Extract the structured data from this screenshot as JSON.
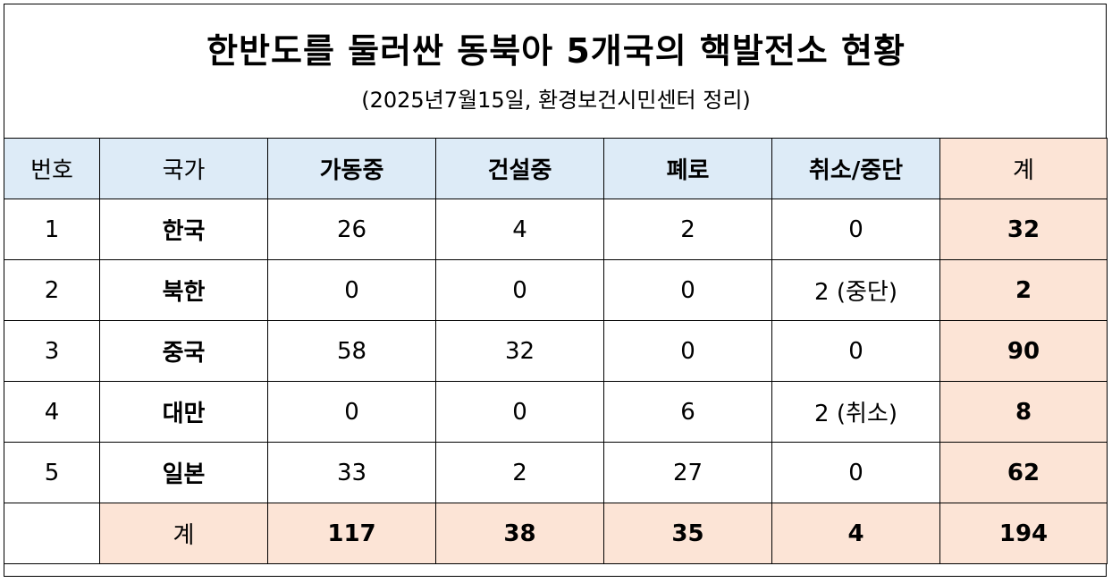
{
  "title": "한반도를 둘러싼 동북아 5개국의 핵발전소 현황",
  "subtitle": "(2025년7월15일, 환경보건시민센터 정리)",
  "table": {
    "headers": [
      "번호",
      "국가",
      "가동중",
      "건설중",
      "폐로",
      "취소/중단",
      "계"
    ],
    "rows": [
      [
        "1",
        "한국",
        "26",
        "4",
        "2",
        "0",
        "32"
      ],
      [
        "2",
        "북한",
        "0",
        "0",
        "0",
        "2 (중단)",
        "2"
      ],
      [
        "3",
        "중국",
        "58",
        "32",
        "0",
        "0",
        "90"
      ],
      [
        "4",
        "대만",
        "0",
        "0",
        "6",
        "2 (취소)",
        "8"
      ],
      [
        "5",
        "일본",
        "33",
        "2",
        "27",
        "0",
        "62"
      ]
    ],
    "total_row": [
      "",
      "계",
      "117",
      "38",
      "35",
      "4",
      "194"
    ]
  },
  "colors": {
    "header_bg": "#ddebf7",
    "total_bg": "#fce4d6",
    "border": "#000000"
  }
}
